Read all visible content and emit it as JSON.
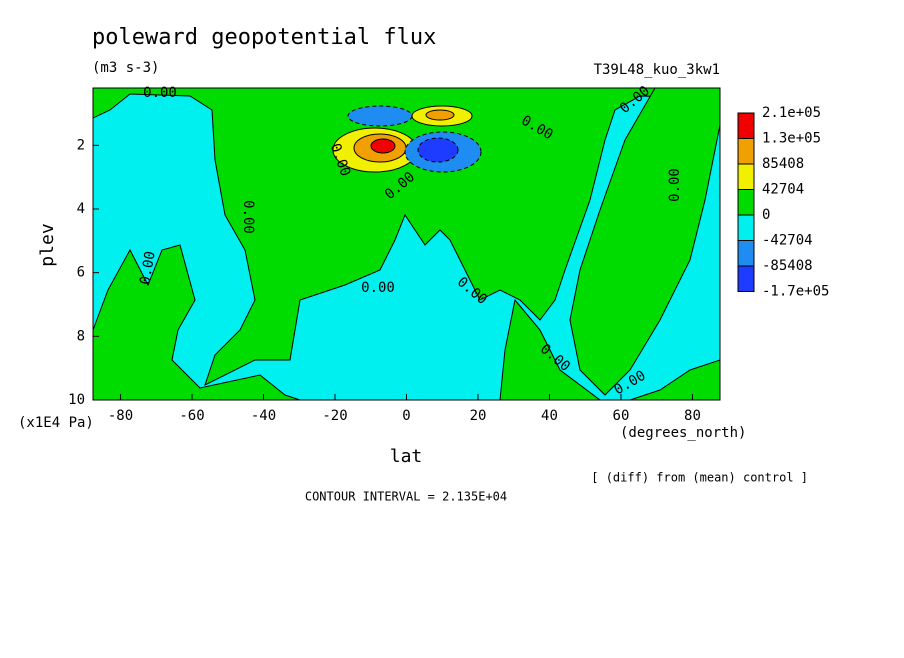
{
  "chart_data": {
    "type": "contour",
    "title": "poleward geopotential flux",
    "subtitle": "(m3 s-3)",
    "run_label": "T39L48_kuo_3kw1",
    "x_label": "lat",
    "x_unit": "(degrees_north)",
    "y_label": "plev",
    "y_unit": "(x1E4 Pa)",
    "note": "[ (diff) from (mean) control ]",
    "contour_interval": "CONTOUR INTERVAL = 2.135E+04",
    "xlim": [
      -87.7,
      87.7
    ],
    "xticks": [
      -80,
      -60,
      -40,
      -20,
      0,
      20,
      40,
      60,
      80
    ],
    "ylim": [
      10,
      0.2
    ],
    "yticks": [
      2,
      4,
      6,
      8,
      10
    ],
    "levels": [
      {
        "value": 213500,
        "label": "2.1e+05",
        "color": "#f00000"
      },
      {
        "value": 128100,
        "label": "1.3e+05",
        "color": "#f0a000"
      },
      {
        "value": 85408,
        "label": "85408",
        "color": "#f0f000"
      },
      {
        "value": 42704,
        "label": "42704",
        "color": "#00dc00"
      },
      {
        "value": 0,
        "label": "0",
        "color": "#00f0f0"
      },
      {
        "value": -42704,
        "label": "-42704",
        "color": "#1e8cf0"
      },
      {
        "value": -85408,
        "label": "-85408",
        "color": "#1e3cff"
      },
      {
        "value": -170800,
        "label": "-1.7e+05"
      }
    ],
    "contour_labels": [
      "0.00",
      "0.00",
      "0.00",
      "0.00",
      "0.00",
      "0.00",
      "0.00",
      "0.00",
      "0.00",
      "0.00",
      "0.00",
      "0.00"
    ]
  }
}
